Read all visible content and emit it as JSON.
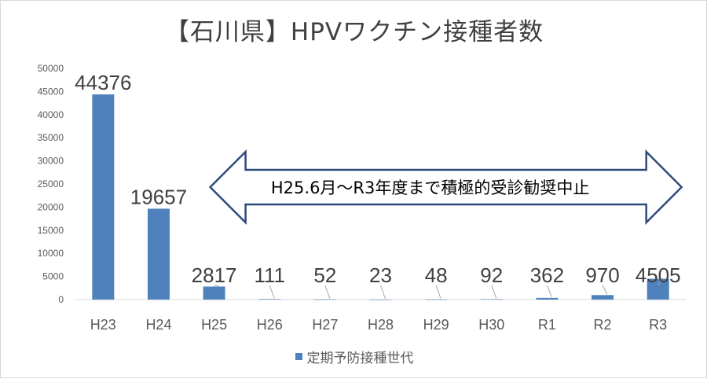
{
  "chart_data": {
    "type": "bar",
    "title": "【石川県】HPVワクチン接種者数",
    "categories": [
      "H23",
      "H24",
      "H25",
      "H26",
      "H27",
      "H28",
      "H29",
      "H30",
      "R1",
      "R2",
      "R3"
    ],
    "series": [
      {
        "name": "定期予防接種世代",
        "values": [
          44376,
          19657,
          2817,
          111,
          52,
          23,
          48,
          92,
          362,
          970,
          4505
        ],
        "labels": [
          "44376",
          "19657",
          "2817",
          "111",
          "52",
          "23",
          "48",
          "92",
          "362",
          "970",
          "4505"
        ]
      }
    ],
    "ylim": [
      0,
      50000
    ],
    "yticks": [
      0,
      5000,
      10000,
      15000,
      20000,
      25000,
      30000,
      35000,
      40000,
      45000,
      50000
    ],
    "ytick_labels": [
      "0",
      "5000",
      "10000",
      "15000",
      "20000",
      "25000",
      "30000",
      "35000",
      "40000",
      "45000",
      "50000"
    ],
    "grid": false,
    "legend_position": "bottom",
    "annotation": {
      "text": "H25.6月～R3年度まで積極的受診勧奨中止",
      "shape": "double-arrow",
      "from_category": "H25",
      "to_category": "R3"
    },
    "colors": {
      "bar": "#4f81bd",
      "arrow_stroke": "#2f4b7c",
      "axis": "#d9d9d9",
      "leader": "#a6a6a6"
    }
  }
}
